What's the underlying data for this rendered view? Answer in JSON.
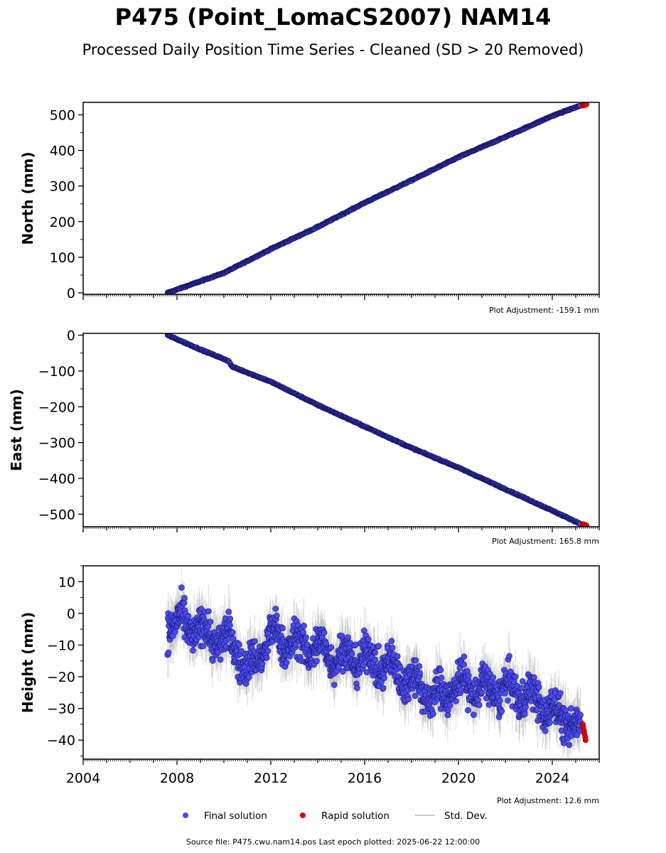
{
  "header": {
    "title": "P475 (Point_LomaCS2007) NAM14",
    "subtitle": "Processed Daily Position Time Series - Cleaned (SD > 20 Removed)"
  },
  "chart_data": [
    {
      "type": "scatter",
      "ylabel": "North (mm)",
      "xlim": [
        2004.0,
        2026.0
      ],
      "ylim": [
        -4,
        535
      ],
      "yticks": [
        0,
        100,
        200,
        300,
        400,
        500
      ],
      "adjustment": "Plot Adjustment: -159.1 mm",
      "series": [
        {
          "name": "Final solution",
          "color": "#4a4af0",
          "x": [
            2007.6,
            2010.0,
            2012.0,
            2014.0,
            2016.0,
            2018.0,
            2020.0,
            2022.0,
            2024.0,
            2025.2
          ],
          "y": [
            0,
            56,
            123,
            185,
            253,
            316,
            381,
            438,
            497,
            526
          ]
        },
        {
          "name": "Rapid solution",
          "color": "#e00000",
          "x": [
            2025.3,
            2025.35,
            2025.4,
            2025.45
          ],
          "y": [
            526,
            527,
            528,
            529
          ]
        }
      ]
    },
    {
      "type": "scatter",
      "ylabel": "East (mm)",
      "xlim": [
        2004.0,
        2026.0
      ],
      "ylim": [
        -535,
        5
      ],
      "yticks": [
        -500,
        -400,
        -300,
        -200,
        -100,
        0
      ],
      "adjustment": "Plot Adjustment: 165.8 mm",
      "series": [
        {
          "name": "Final solution",
          "color": "#4a4af0",
          "x": [
            2007.6,
            2009.0,
            2010.2,
            2010.35,
            2012.0,
            2014.0,
            2016.0,
            2018.0,
            2020.0,
            2022.0,
            2024.0,
            2025.2
          ],
          "y": [
            0,
            -40,
            -72,
            -88,
            -130,
            -195,
            -255,
            -315,
            -370,
            -430,
            -490,
            -527
          ]
        },
        {
          "name": "Rapid solution",
          "color": "#e00000",
          "x": [
            2025.3,
            2025.35,
            2025.4,
            2025.45
          ],
          "y": [
            -528,
            -529,
            -530,
            -531
          ]
        }
      ]
    },
    {
      "type": "scatter",
      "ylabel": "Height (mm)",
      "xlabel": "",
      "xlim": [
        2004.0,
        2026.0
      ],
      "ylim": [
        -46,
        15
      ],
      "yticks": [
        -40,
        -30,
        -20,
        -10,
        0,
        10
      ],
      "xticks": [
        2004,
        2008,
        2012,
        2016,
        2020,
        2024
      ],
      "adjustment": "Plot Adjustment: 12.6 mm",
      "series": [
        {
          "name": "Final solution",
          "color": "#4a4af0",
          "x": [
            2007.6,
            2008.5,
            2009.5,
            2010.5,
            2011.0,
            2012.0,
            2013.0,
            2014.0,
            2015.0,
            2016.0,
            2017.0,
            2018.0,
            2019.0,
            2020.0,
            2021.0,
            2022.0,
            2023.0,
            2024.0,
            2025.2
          ],
          "y": [
            -3,
            -4,
            -7,
            -10,
            -19,
            -7,
            -10,
            -11,
            -14,
            -14,
            -17,
            -21,
            -27,
            -22,
            -24,
            -24,
            -26,
            -31,
            -36
          ]
        },
        {
          "name": "Rapid solution",
          "color": "#e00000",
          "x": [
            2025.3,
            2025.32,
            2025.35,
            2025.37,
            2025.4,
            2025.42
          ],
          "y": [
            -35,
            -36,
            -37,
            -38,
            -39,
            -40
          ]
        }
      ]
    }
  ],
  "legend": {
    "final": "Final solution",
    "rapid": "Rapid solution",
    "std": "Std. Dev."
  },
  "footer": {
    "source": "Source file: P475.cwu.nam14.pos  Last epoch plotted: 2025-06-22 12:00:00"
  },
  "colors": {
    "final_fill": "#4a4af0",
    "final_edge": "#14145a",
    "rapid_fill": "#e00000",
    "std_dev": "#999999",
    "axes": "#000000"
  }
}
